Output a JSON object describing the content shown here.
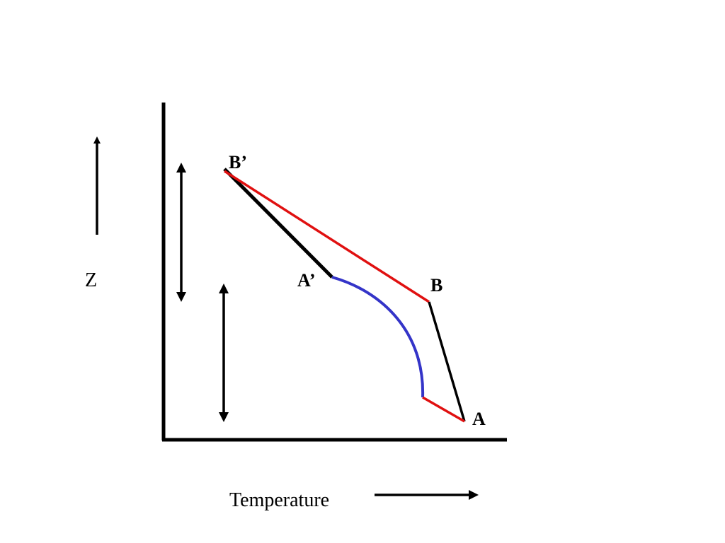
{
  "diagram": {
    "y_axis_label": "Z",
    "x_axis_label": "Temperature",
    "points": {
      "A": "A",
      "B": "B",
      "A_prime": "A’",
      "B_prime": "B’"
    },
    "colors": {
      "axes": "#000000",
      "black_path": "#000000",
      "red_path": "#e01010",
      "blue_path": "#3434c8",
      "background": "#ffffff"
    }
  }
}
